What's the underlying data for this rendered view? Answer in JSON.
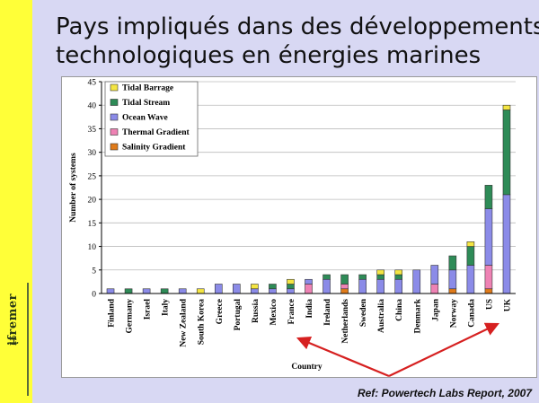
{
  "slide": {
    "title_line1": "Pays impliqués dans des développements",
    "title_line2": "technologiques en énergies marines",
    "logo_text": "ifremer",
    "reference": "Ref: Powertech Labs  Report, 2007"
  },
  "colors": {
    "Tidal Barrage": "#f4e542",
    "Tidal Stream": "#2e8b57",
    "Ocean Wave": "#8b8be8",
    "Thermal Gradient": "#ee82b4",
    "Salinity Gradient": "#e07b1a",
    "arrow": "#d62020"
  },
  "chart_data": {
    "type": "bar",
    "stacked": true,
    "xlabel": "Country",
    "ylabel": "Number of systems",
    "ylim": [
      0,
      45
    ],
    "yticks": [
      0,
      5,
      10,
      15,
      20,
      25,
      30,
      35,
      40,
      45
    ],
    "legend_position": "top-left",
    "categories": [
      "Finland",
      "Germany",
      "Israel",
      "Italy",
      "New Zealand",
      "South Korea",
      "Greece",
      "Portugal",
      "Russia",
      "Mexico",
      "France",
      "India",
      "Ireland",
      "Netherlands",
      "Sweden",
      "Australia",
      "China",
      "Denmark",
      "Japan",
      "Norway",
      "Canada",
      "US",
      "UK"
    ],
    "series": [
      {
        "name": "Salinity Gradient",
        "values": [
          0,
          0,
          0,
          0,
          0,
          0,
          0,
          0,
          0,
          0,
          0,
          0,
          0,
          1,
          0,
          0,
          0,
          0,
          0,
          1,
          0,
          1,
          0
        ]
      },
      {
        "name": "Thermal Gradient",
        "values": [
          0,
          0,
          0,
          0,
          0,
          0,
          0,
          0,
          0,
          0,
          0,
          2,
          0,
          1,
          0,
          0,
          0,
          0,
          2,
          0,
          0,
          5,
          0
        ]
      },
      {
        "name": "Ocean Wave",
        "values": [
          1,
          0,
          1,
          0,
          1,
          0,
          2,
          2,
          1,
          1,
          1,
          1,
          3,
          0,
          3,
          3,
          3,
          5,
          4,
          4,
          6,
          12,
          21
        ]
      },
      {
        "name": "Tidal Stream",
        "values": [
          0,
          1,
          0,
          1,
          0,
          0,
          0,
          0,
          0,
          1,
          1,
          0,
          1,
          2,
          1,
          1,
          1,
          0,
          0,
          3,
          4,
          5,
          18
        ]
      },
      {
        "name": "Tidal Barrage",
        "values": [
          0,
          0,
          0,
          0,
          0,
          1,
          0,
          0,
          1,
          0,
          1,
          0,
          0,
          0,
          0,
          1,
          1,
          0,
          0,
          0,
          1,
          0,
          1
        ]
      }
    ],
    "legend": [
      "Tidal Barrage",
      "Tidal Stream",
      "Ocean Wave",
      "Thermal Gradient",
      "Salinity Gradient"
    ]
  }
}
